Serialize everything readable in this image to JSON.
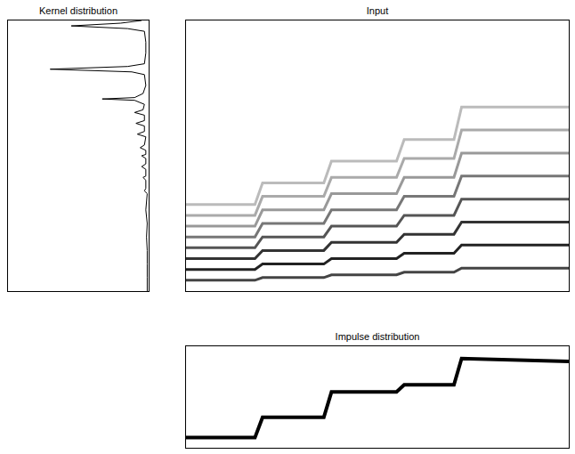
{
  "chart_data": [
    {
      "type": "line",
      "title": "Kernel distribution",
      "orientation": "horizontal",
      "tick_labels": false,
      "color": "#000000",
      "x": [
        0,
        1,
        2,
        3,
        4,
        8,
        12,
        16,
        17,
        18,
        19,
        20,
        24,
        27,
        28.5,
        29,
        29.5,
        31,
        33,
        34,
        35,
        37,
        38,
        39,
        41,
        42,
        43,
        46,
        47,
        48,
        49.5,
        50,
        51,
        53,
        54,
        55,
        57.5,
        58,
        59,
        62,
        63,
        64,
        70,
        75,
        80,
        85,
        90,
        95,
        100
      ],
      "values": [
        0.05,
        0.2,
        0.55,
        0.15,
        0.03,
        0.02,
        0.02,
        0.03,
        0.15,
        0.7,
        0.12,
        0.03,
        0.02,
        0.04,
        0.1,
        0.33,
        0.1,
        0.03,
        0.04,
        0.1,
        0.03,
        0.03,
        0.09,
        0.03,
        0.03,
        0.08,
        0.02,
        0.03,
        0.06,
        0.02,
        0.02,
        0.05,
        0.02,
        0.02,
        0.05,
        0.02,
        0.02,
        0.04,
        0.02,
        0.02,
        0.03,
        0.01,
        0.02,
        0.01,
        0.015,
        0.01,
        0.01,
        0.01,
        0.01
      ],
      "xlim": [
        0,
        100
      ],
      "ylim": [
        0,
        1
      ]
    },
    {
      "type": "line",
      "title": "Input",
      "tick_labels": false,
      "x": [
        0,
        18,
        20,
        36,
        38,
        55,
        57,
        70,
        72,
        100
      ],
      "series": [
        {
          "color": "#444444",
          "values": [
            4,
            4,
            5,
            5,
            6,
            6,
            7,
            7,
            8.5,
            8.5
          ]
        },
        {
          "color": "#222222",
          "values": [
            8,
            8,
            10,
            10,
            12,
            12,
            14,
            14,
            17,
            17
          ]
        },
        {
          "color": "#333333",
          "values": [
            12,
            12,
            15,
            15,
            18,
            18,
            21,
            21,
            25.5,
            25.5
          ]
        },
        {
          "color": "#555555",
          "values": [
            16,
            16,
            20,
            20,
            24,
            24,
            28,
            28,
            34,
            34
          ]
        },
        {
          "color": "#777777",
          "values": [
            20,
            20,
            25,
            25,
            30,
            30,
            35,
            35,
            42.5,
            42.5
          ]
        },
        {
          "color": "#999999",
          "values": [
            24,
            24,
            30,
            30,
            36,
            36,
            42,
            42,
            51,
            51
          ]
        },
        {
          "color": "#aaaaaa",
          "values": [
            28,
            28,
            35,
            35,
            42,
            42,
            49,
            49,
            59.5,
            59.5
          ]
        },
        {
          "color": "#bbbbbb",
          "values": [
            32,
            32,
            40,
            40,
            48,
            48,
            56,
            56,
            68,
            68
          ]
        }
      ],
      "xlim": [
        0,
        100
      ],
      "ylim": [
        0,
        100
      ]
    },
    {
      "type": "line",
      "title": "Impulse distribution",
      "tick_labels": false,
      "color": "#000000",
      "x": [
        0,
        18,
        20,
        36,
        38,
        55,
        57,
        70,
        72,
        100
      ],
      "values": [
        10,
        10,
        30,
        30,
        55,
        55,
        62,
        62,
        88,
        85
      ],
      "xlim": [
        0,
        100
      ],
      "ylim": [
        0,
        100
      ]
    }
  ]
}
